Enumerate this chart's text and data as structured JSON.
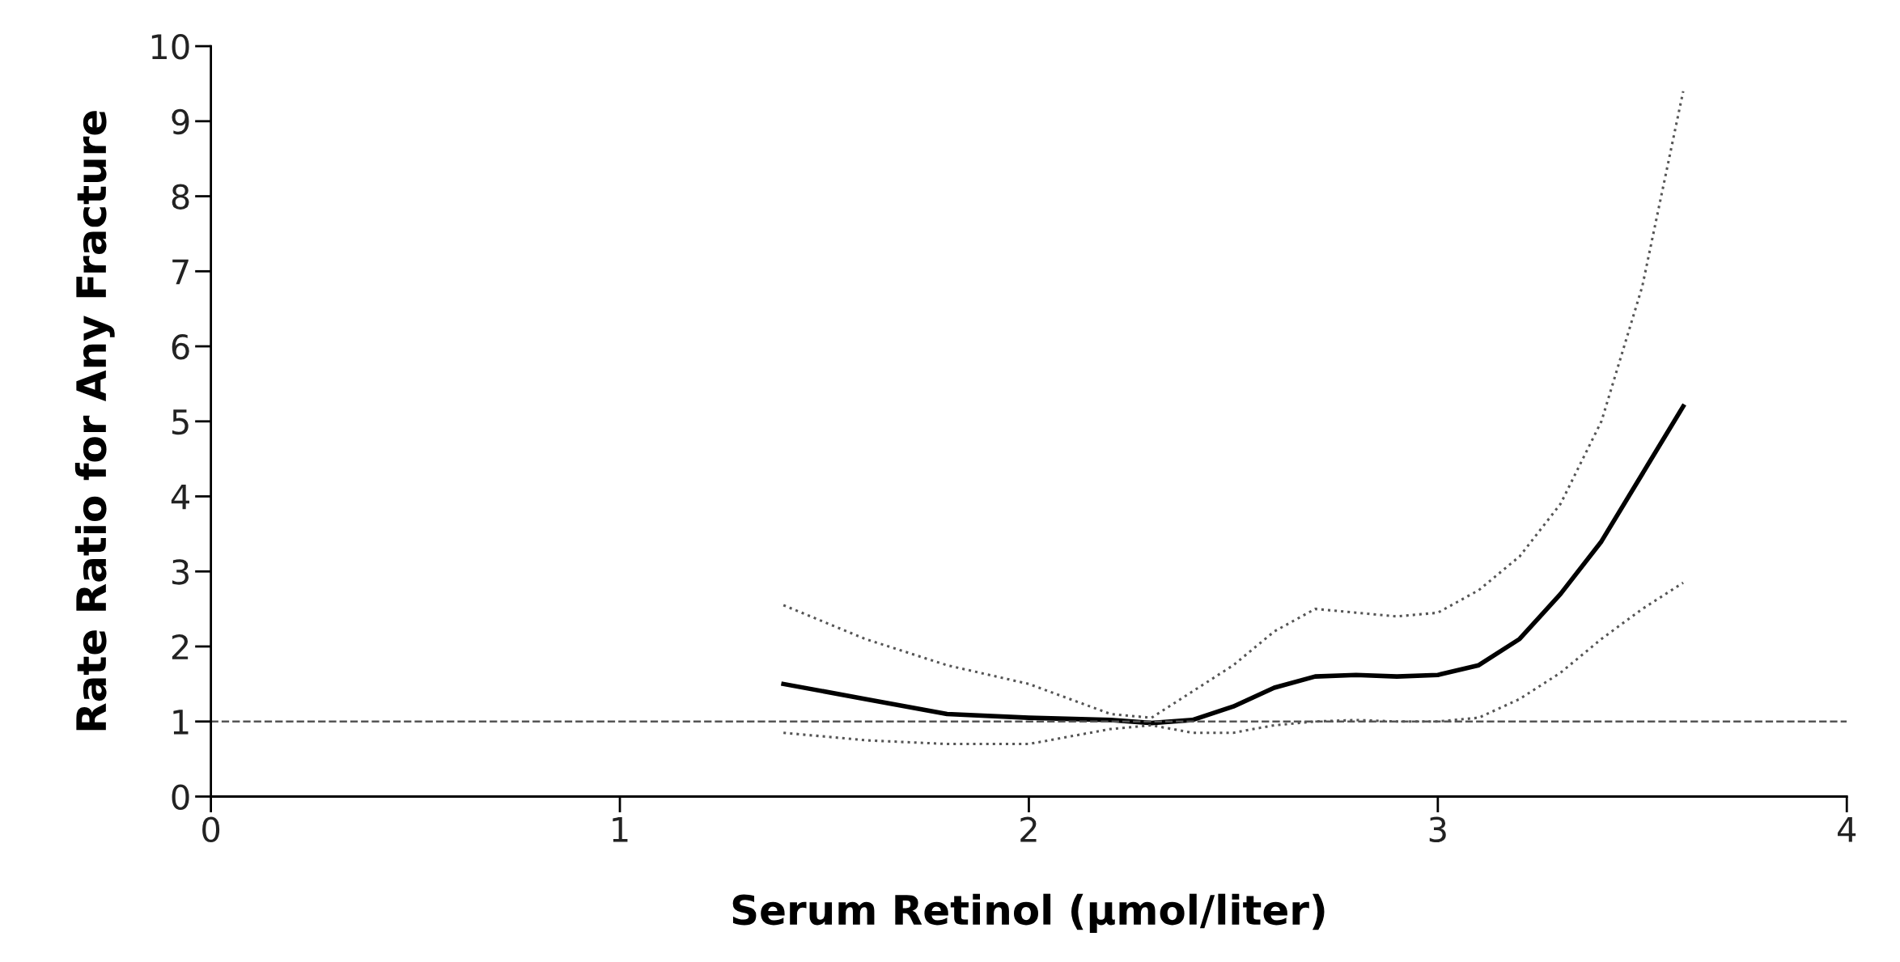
{
  "chart_data": {
    "type": "line",
    "xlabel": "Serum Retinol (μmol/liter)",
    "ylabel": "Rate Ratio for Any Fracture",
    "xlim": [
      0,
      4
    ],
    "xticks": [
      0,
      1,
      2,
      3,
      4
    ],
    "ylim": [
      0,
      10
    ],
    "yticks": [
      0,
      1,
      2,
      3,
      4,
      5,
      6,
      7,
      8,
      9,
      10
    ],
    "grid": false,
    "x": [
      1.4,
      1.6,
      1.8,
      2.0,
      2.2,
      2.3,
      2.4,
      2.5,
      2.6,
      2.7,
      2.8,
      2.9,
      3.0,
      3.1,
      3.2,
      3.3,
      3.4,
      3.5,
      3.6
    ],
    "series": [
      {
        "color": "#000000",
        "line_style": "solid",
        "values": [
          1.5,
          1.3,
          1.1,
          1.05,
          1.02,
          0.98,
          1.02,
          1.2,
          1.45,
          1.6,
          1.62,
          1.6,
          1.62,
          1.75,
          2.1,
          2.7,
          3.4,
          4.3,
          5.2
        ]
      },
      {
        "color": "#555555",
        "line_style": "dotted",
        "values": [
          2.55,
          2.1,
          1.75,
          1.5,
          1.1,
          1.05,
          1.4,
          1.75,
          2.2,
          2.5,
          2.45,
          2.4,
          2.45,
          2.75,
          3.2,
          3.9,
          5.0,
          6.8,
          9.4
        ]
      },
      {
        "color": "#555555",
        "line_style": "dotted",
        "values": [
          0.85,
          0.75,
          0.7,
          0.7,
          0.9,
          0.95,
          0.85,
          0.85,
          0.95,
          1.0,
          1.02,
          1.0,
          1.0,
          1.05,
          1.3,
          1.65,
          2.1,
          2.5,
          2.85
        ]
      }
    ],
    "ref_lines": [
      {
        "axis": "y",
        "value": 1,
        "color": "#555555",
        "line_style": "dashed"
      }
    ]
  }
}
